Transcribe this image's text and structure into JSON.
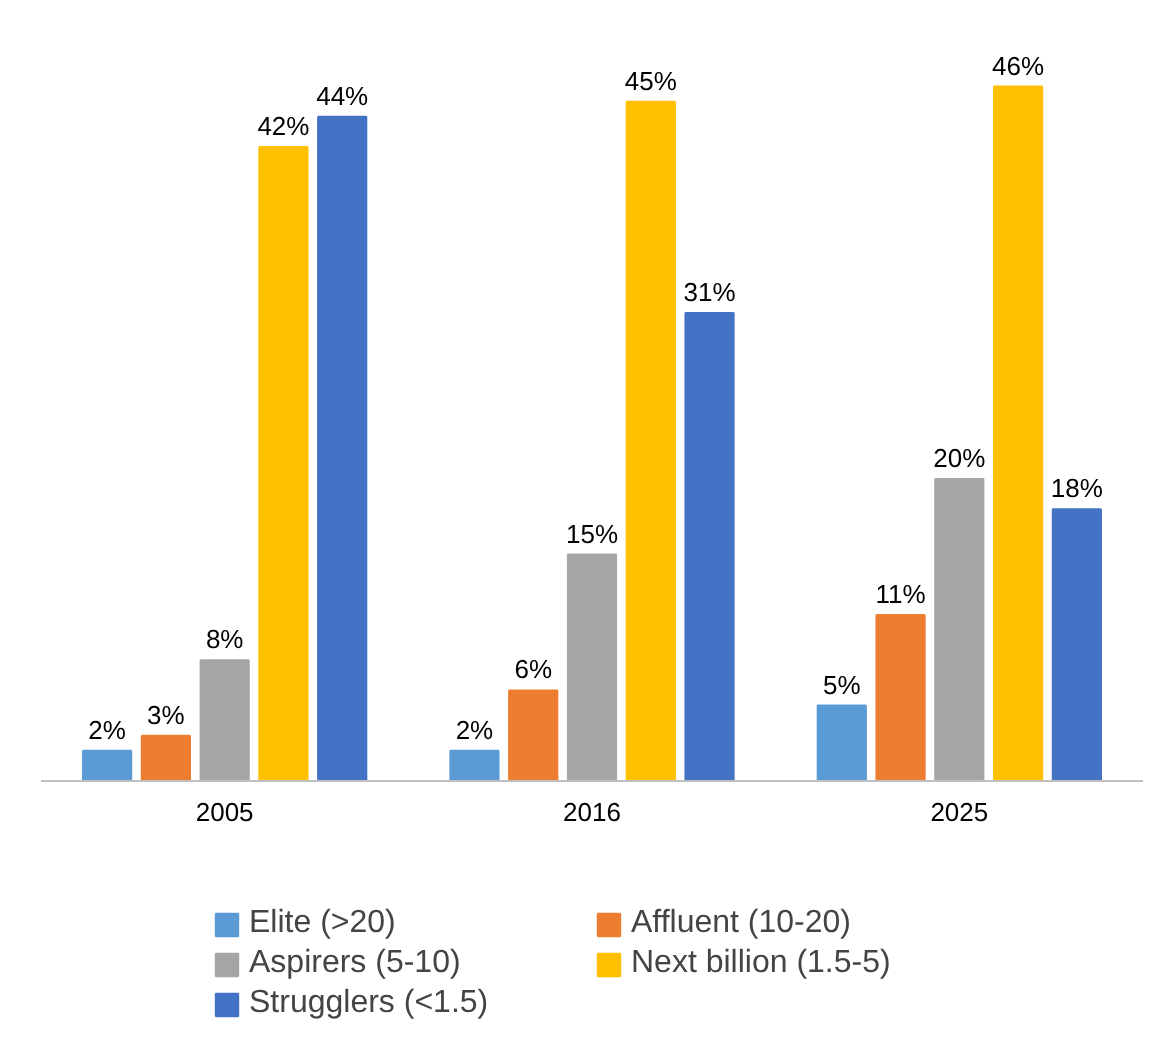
{
  "chart_data": {
    "type": "bar",
    "categories": [
      "2005",
      "2016",
      "2025"
    ],
    "series": [
      {
        "name": "Elite (>20)",
        "color": "#5b9bd5",
        "values": [
          2,
          2,
          5
        ],
        "value_labels": [
          "2%",
          "2%",
          "5%"
        ]
      },
      {
        "name": "Affluent (10-20)",
        "color": "#ed7d31",
        "values": [
          3,
          6,
          11
        ],
        "value_labels": [
          "3%",
          "6%",
          "11%"
        ]
      },
      {
        "name": "Aspirers (5-10)",
        "color": "#a5a5a5",
        "values": [
          8,
          15,
          20
        ],
        "value_labels": [
          "8%",
          "15%",
          "20%"
        ]
      },
      {
        "name": "Next billion (1.5-5)",
        "color": "#ffc000",
        "values": [
          42,
          45,
          46
        ],
        "value_labels": [
          "42%",
          "45%",
          "46%"
        ]
      },
      {
        "name": "Strugglers (<1.5)",
        "color": "#4472c4",
        "values": [
          44,
          31,
          18
        ],
        "value_labels": [
          "44%",
          "31%",
          "18%"
        ]
      }
    ],
    "legend": "bottom",
    "grid": false,
    "tick_labels": "x"
  }
}
